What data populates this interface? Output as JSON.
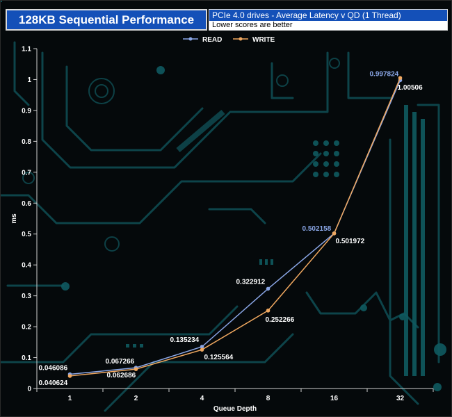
{
  "header": {
    "title": "128KB Sequential Performance",
    "subtitle": "PCIe 4.0 drives - Average Latency v QD (1 Thread)",
    "note": "Lower scores are better"
  },
  "colors": {
    "read": "#8aa6e6",
    "write": "#f0a860",
    "axis_text": "#ffffff",
    "background": "#05090b",
    "circuit": "#0f4f55"
  },
  "chart_data": {
    "type": "line",
    "categories": [
      "1",
      "2",
      "4",
      "8",
      "16",
      "32"
    ],
    "xlabel": "Queue Depth",
    "ylabel": "ms",
    "ylim": [
      0,
      1.1
    ],
    "yticks": [
      "0",
      "0.1",
      "0.2",
      "0.3",
      "0.4",
      "0.5",
      "0.6",
      "0.7",
      "0.8",
      "0.9",
      "1",
      "1.1"
    ],
    "legend_position": "top",
    "grid": false,
    "series": [
      {
        "name": "READ",
        "values": [
          0.046086,
          0.067266,
          0.135234,
          0.322912,
          0.502158,
          0.997824
        ],
        "labels": [
          "0.046086",
          "0.067266",
          "0.135234",
          "0.322912",
          "0.502158",
          "0.997824"
        ]
      },
      {
        "name": "WRITE",
        "values": [
          0.040624,
          0.062686,
          0.125564,
          0.252266,
          0.501972,
          1.00506
        ],
        "labels": [
          "0.040624",
          "0.062686",
          "0.125564",
          "0.252266",
          "0.501972",
          "1.00506"
        ]
      }
    ]
  }
}
